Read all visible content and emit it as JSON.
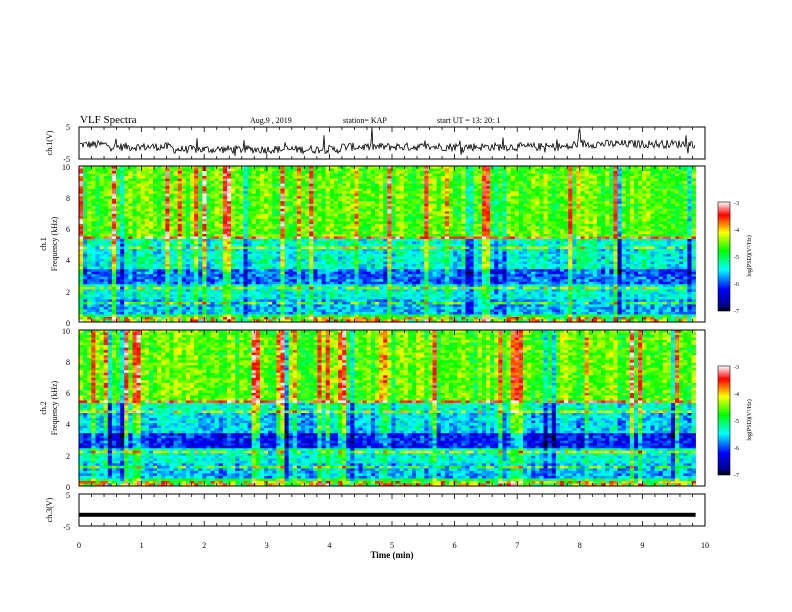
{
  "header": {
    "title": "VLF Spectra",
    "date": "Aug.9 , 2019",
    "station": "station= KAP",
    "start": "start UT = 13: 20: 1"
  },
  "chart_data": {
    "type": "heatmap",
    "xlabel": "Time (min)",
    "xlim": [
      0,
      10
    ],
    "xticks": [
      "0",
      "1",
      "2",
      "3",
      "4",
      "5",
      "6",
      "7",
      "8",
      "9",
      "10"
    ],
    "panels": [
      {
        "id": "ch1_waveform",
        "type": "line",
        "ylabel": "ch.1(V)",
        "ylim": [
          -5,
          5
        ],
        "yticks": [
          "5",
          "-5"
        ]
      },
      {
        "id": "ch1_spectrogram",
        "type": "heatmap",
        "ylabel_ch": "ch.1",
        "ylabel": "Frequency (kHz)",
        "ylim": [
          0,
          10
        ],
        "yticks": [
          "10",
          "8",
          "6",
          "4",
          "2",
          "0"
        ],
        "colorbar": {
          "label": "log(PSD)(V²/Hz)",
          "range": [
            -7,
            -3
          ],
          "ticks": [
            "-3",
            "-4",
            "-5",
            "-6",
            "-7"
          ]
        }
      },
      {
        "id": "ch2_spectrogram",
        "type": "heatmap",
        "ylabel_ch": "ch.2",
        "ylabel": "Frequency (kHz)",
        "ylim": [
          0,
          10
        ],
        "yticks": [
          "10",
          "8",
          "6",
          "4",
          "2",
          "0"
        ],
        "colorbar": {
          "label": "log(PSD)(V²/Hz)",
          "range": [
            -7,
            -3
          ],
          "ticks": [
            "-3",
            "-4",
            "-5",
            "-6",
            "-7"
          ]
        }
      },
      {
        "id": "ch3_waveform",
        "type": "line",
        "ylabel": "ch.3(V)",
        "ylim": [
          -5,
          5
        ],
        "yticks": [
          "5",
          "-5"
        ],
        "constant_value": -1.5
      }
    ],
    "data_end_min": 9.85
  }
}
